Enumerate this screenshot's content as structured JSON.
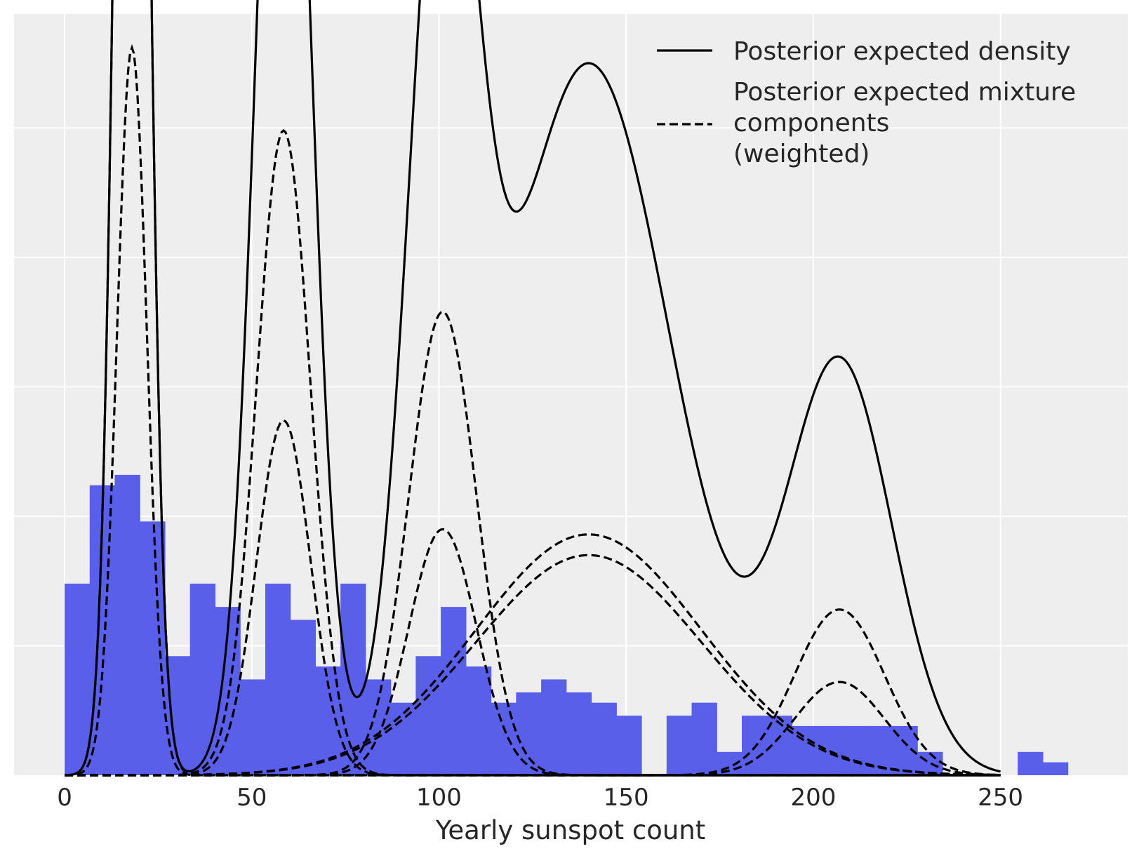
{
  "chart_data": {
    "type": "bar",
    "title": "",
    "xlabel": "Yearly sunspot count",
    "ylabel": "",
    "xlim": [
      -13.5,
      284
    ],
    "ylim": [
      0,
      0.0294
    ],
    "xticks": [
      0,
      50,
      100,
      150,
      200,
      250
    ],
    "ygrid": [
      0.005,
      0.01,
      0.015,
      0.02,
      0.025
    ],
    "grid": true,
    "background_color": "#eeeeee",
    "bar_color": "#5a5fea",
    "line_color": "#000000",
    "legend": {
      "position": "top-right",
      "entries": [
        {
          "style": "solid",
          "lines": [
            "Posterior expected density"
          ]
        },
        {
          "style": "dashed",
          "lines": [
            "Posterior expected mixture",
            "components",
            "(weighted)"
          ]
        }
      ]
    },
    "histogram": {
      "bin_width": 6.7,
      "bin_start": 0,
      "values": [
        0.0074,
        0.0112,
        0.0116,
        0.0098,
        0.0046,
        0.0074,
        0.0065,
        0.0037,
        0.0074,
        0.006,
        0.0042,
        0.0074,
        0.0037,
        0.0028,
        0.0046,
        0.0065,
        0.0042,
        0.0028,
        0.0032,
        0.0037,
        0.0032,
        0.0028,
        0.0023,
        0.0,
        0.0023,
        0.0028,
        0.0009,
        0.0023,
        0.0023,
        0.0019,
        0.0019,
        0.0019,
        0.0019,
        0.0019,
        0.0009,
        0.0,
        0.0,
        0.0,
        0.0009,
        0.0005
      ]
    },
    "density": {
      "name": "Posterior expected density",
      "components": [
        {
          "mu": 18,
          "sigma": 4.0,
          "weight": 0.0708
        },
        {
          "mu": 58.5,
          "sigma": 7.2,
          "weight": 0.0477
        },
        {
          "mu": 101,
          "sigma": 9.0,
          "weight": 0.0335
        },
        {
          "mu": 140,
          "sigma": 22,
          "weight": 0.0275
        },
        {
          "mu": 207,
          "sigma": 14,
          "weight": 0.0159
        }
      ]
    },
    "mixture_components": [
      {
        "mu": 18,
        "sigma": 4.0,
        "weight": 0.0708
      },
      {
        "mu": 18,
        "sigma": 4.0,
        "weight": 0.0281
      },
      {
        "mu": 58.5,
        "sigma": 7.2,
        "weight": 0.0249
      },
      {
        "mu": 58.5,
        "sigma": 7.2,
        "weight": 0.0137
      },
      {
        "mu": 101,
        "sigma": 9.0,
        "weight": 0.0179
      },
      {
        "mu": 101,
        "sigma": 9.0,
        "weight": 0.0095
      },
      {
        "mu": 140,
        "sigma": 30,
        "weight": 0.0093
      },
      {
        "mu": 140,
        "sigma": 30,
        "weight": 0.0085
      },
      {
        "mu": 207,
        "sigma": 12,
        "weight": 0.0064
      },
      {
        "mu": 207,
        "sigma": 12,
        "weight": 0.0036
      }
    ],
    "curve_range": [
      0,
      250
    ]
  }
}
